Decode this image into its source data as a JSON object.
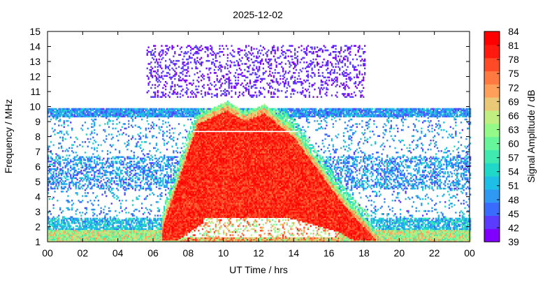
{
  "chart_data": {
    "type": "heatmap",
    "title": "2025-12-02",
    "xlabel": "UT Time / hrs",
    "ylabel": "Frequency / MHz",
    "xlim": [
      0,
      24
    ],
    "ylim": [
      1,
      15
    ],
    "x_ticks": [
      "00",
      "02",
      "04",
      "06",
      "08",
      "10",
      "12",
      "14",
      "16",
      "18",
      "20",
      "22",
      "00"
    ],
    "y_ticks": [
      "1",
      "2",
      "3",
      "4",
      "5",
      "6",
      "7",
      "8",
      "9",
      "10",
      "11",
      "12",
      "13",
      "14",
      "15"
    ],
    "grid": false,
    "colorbar": {
      "label": "Signal Amplitude / dB",
      "range": [
        39,
        84
      ],
      "ticks": [
        "39",
        "42",
        "45",
        "48",
        "51",
        "54",
        "57",
        "60",
        "63",
        "66",
        "69",
        "72",
        "75",
        "78",
        "81",
        "84"
      ],
      "colors": [
        "#7f00ff",
        "#5b3cff",
        "#3a6bff",
        "#2f98f2",
        "#1dbfe6",
        "#1fd8c8",
        "#3fe9b0",
        "#66f59a",
        "#93fa87",
        "#c0ee80",
        "#e9c878",
        "#ffa05a",
        "#ff7a40",
        "#ff4a28",
        "#ff1a10",
        "#ff0000"
      ]
    },
    "features": [
      {
        "name": "day-time absorption envelope",
        "x_range": [
          6.2,
          20.0
        ],
        "peak_frequency_mhz": 10.3,
        "peak_time_hr": 10.2,
        "amplitude_db": 84
      },
      {
        "name": "background band",
        "x_range": [
          0,
          24
        ],
        "y_range": [
          1,
          9.8
        ],
        "amplitude_db": 45
      },
      {
        "name": "upper sporadic dots",
        "x_range": [
          5.5,
          18.0
        ],
        "y_range": [
          10.5,
          14
        ],
        "amplitude_db": 39
      },
      {
        "name": "low-frequency band",
        "x_range": [
          0,
          24
        ],
        "y_range": [
          1,
          2.6
        ],
        "amplitude_db": 60
      }
    ]
  }
}
